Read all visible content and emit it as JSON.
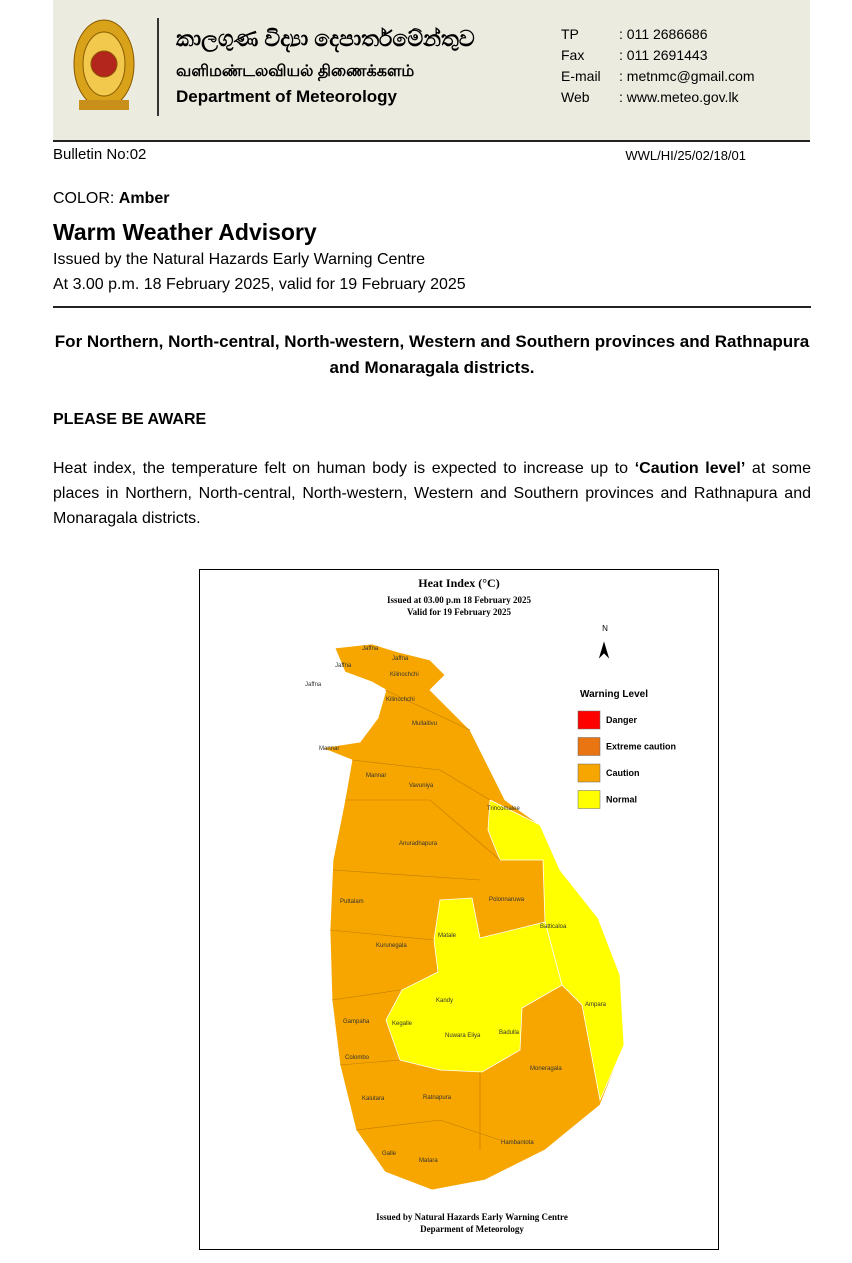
{
  "header": {
    "sinhala": "කාලගුණ විද්‍යා දෙපාර්තමේන්තුව",
    "tamil": "வளிமண்டலவியல் திணைக்களம்",
    "english": "Department of Meteorology",
    "contacts": [
      {
        "label": "TP",
        "value": ": 011 2686686"
      },
      {
        "label": "Fax",
        "value": ": 011 2691443"
      },
      {
        "label": "E-mail",
        "value": ": metnmc@gmail.com"
      },
      {
        "label": "Web",
        "value": ": www.meteo.gov.lk"
      }
    ]
  },
  "bulletin_no": "Bulletin No:02",
  "reference": "WWL/HI/25/02/18/01",
  "color_label": "COLOR:",
  "color_value": "Amber",
  "title": "Warm Weather Advisory",
  "issued_by": "Issued by the Natural Hazards Early Warning Centre",
  "issued_at": "At 3.00 p.m. 18 February 2025, valid for 19 February 2025",
  "headline": "For Northern, North-central, North-western, Western and Southern provinces and Rathnapura and Monaragala districts.",
  "aware": "PLEASE BE AWARE",
  "body": {
    "before": "Heat index, the temperature felt on human body is expected to increase up to ",
    "bold": "‘Caution level’",
    "after": " at some places in Northern, North-central, North-western, Western and Southern provinces and Rathnapura and Monaragala districts."
  },
  "map": {
    "title": "Heat Index (°C)",
    "subtitle_1": "Issued at 03.00 p.m 18 February 2025",
    "subtitle_2": "Valid for 19 February 2025",
    "north": "N",
    "legend_title": "Warning Level",
    "legend": [
      {
        "name": "Danger",
        "color": "#ff0000"
      },
      {
        "name": "Extreme caution",
        "color": "#e87511"
      },
      {
        "name": "Caution",
        "color": "#f7a600"
      },
      {
        "name": "Normal",
        "color": "#ffff00"
      }
    ],
    "districts": [
      "Jaffna",
      "Jaffna",
      "Jaffna",
      "Jaffna",
      "Kilinochchi",
      "Kilinochchi",
      "Mullaitivu",
      "Mannar",
      "Mannar",
      "Vavuniya",
      "Trincomalee",
      "Anuradhapura",
      "Puttalam",
      "Polonnaruwa",
      "Batticaloa",
      "Matale",
      "Kurunegala",
      "Kandy",
      "Ampara",
      "Gampaha",
      "Kegalle",
      "Nuwara Eliya",
      "Badulla",
      "Colombo",
      "Moneragala",
      "Kalutara",
      "Ratnapura",
      "Hambantota",
      "Galle",
      "Matara"
    ],
    "footer_1": "Issued by Natural Hazards Early Warning Centre",
    "footer_2": "Deparment of Meteorology"
  }
}
